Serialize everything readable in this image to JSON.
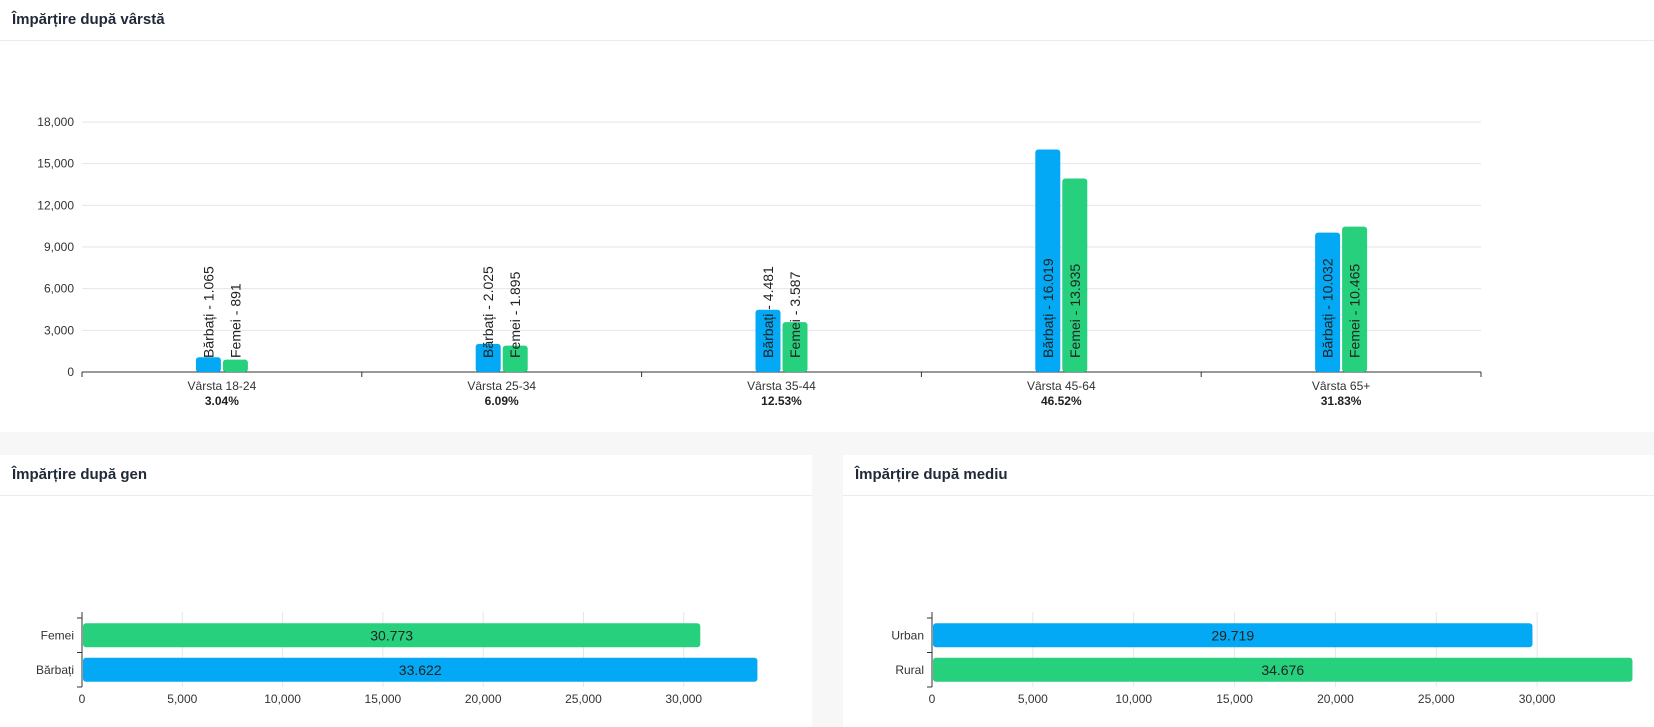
{
  "panels": {
    "age": {
      "title": "Împărțire după vârstă"
    },
    "gender": {
      "title": "Împărțire după gen"
    },
    "env": {
      "title": "Împărțire după mediu"
    }
  },
  "colors": {
    "blue": "#03a9f4",
    "green": "#26d07c",
    "grid": "#e6e6e6",
    "axis": "#333333"
  },
  "chart_data": [
    {
      "type": "bar",
      "orientation": "vertical",
      "title": "Împărțire după vârstă",
      "categories": [
        "Vârsta 18-24",
        "Vârsta 25-34",
        "Vârsta 35-44",
        "Vârsta 45-64",
        "Vârsta 65+"
      ],
      "category_percents": [
        "3.04%",
        "6.09%",
        "12.53%",
        "46.52%",
        "31.83%"
      ],
      "series": [
        {
          "name": "Bărbați",
          "color": "#03a9f4",
          "values": [
            1065,
            2025,
            4481,
            16019,
            10032
          ],
          "labels": [
            "Bărbați - 1.065",
            "Bărbați - 2.025",
            "Bărbați - 4.481",
            "Bărbați - 16.019",
            "Bărbați - 10.032"
          ]
        },
        {
          "name": "Femei",
          "color": "#26d07c",
          "values": [
            891,
            1895,
            3587,
            13935,
            10465
          ],
          "labels": [
            "Femei - 891",
            "Femei - 1.895",
            "Femei - 3.587",
            "Femei - 13.935",
            "Femei - 10.465"
          ]
        }
      ],
      "ylim": [
        0,
        18000
      ],
      "yticks": [
        "0",
        "3,000",
        "6,000",
        "9,000",
        "12,000",
        "15,000",
        "18,000"
      ],
      "grid": true
    },
    {
      "type": "bar",
      "orientation": "horizontal",
      "title": "Împărțire după gen",
      "categories": [
        "Femei",
        "Bărbați"
      ],
      "values": [
        30773,
        33622
      ],
      "value_labels": [
        "30.773",
        "33.622"
      ],
      "colors": [
        "#26d07c",
        "#03a9f4"
      ],
      "xlim": [
        0,
        34000
      ],
      "xticks": [
        "0",
        "5,000",
        "10,000",
        "15,000",
        "20,000",
        "25,000",
        "30,000"
      ],
      "grid": true
    },
    {
      "type": "bar",
      "orientation": "horizontal",
      "title": "Împărțire după mediu",
      "categories": [
        "Urban",
        "Rural"
      ],
      "values": [
        29719,
        34676
      ],
      "value_labels": [
        "29.719",
        "34.676"
      ],
      "colors": [
        "#03a9f4",
        "#26d07c"
      ],
      "xlim": [
        0,
        35000
      ],
      "xticks": [
        "0",
        "5,000",
        "10,000",
        "15,000",
        "20,000",
        "25,000",
        "30,000"
      ],
      "grid": true
    }
  ]
}
